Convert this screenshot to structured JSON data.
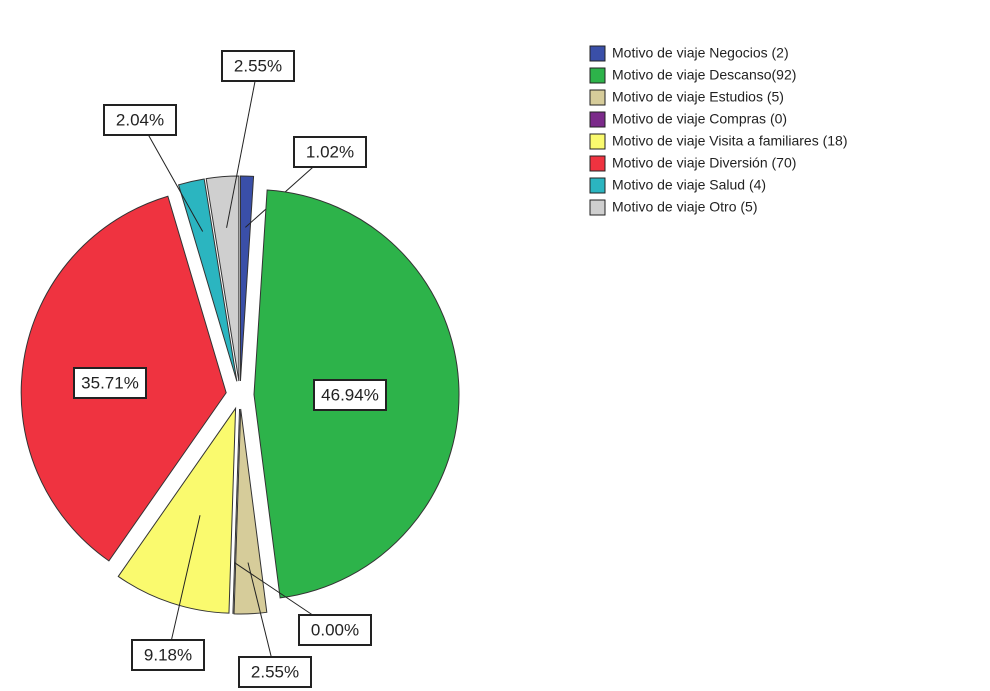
{
  "chart_data": {
    "type": "pie",
    "categories": [
      "Motivo de viaje Negocios (2)",
      "Motivo de viaje Descanso(92)",
      "Motivo de viaje Estudios (5)",
      "Motivo de viaje Compras (0)",
      "Motivo de viaje Visita a familiares (18)",
      "Motivo de viaje Diversión (70)",
      "Motivo de viaje Salud (4)",
      "Motivo de viaje Otro (5)"
    ],
    "values": [
      1.02,
      46.94,
      2.55,
      0.0,
      9.18,
      35.71,
      2.04,
      2.55
    ],
    "value_labels": [
      "1.02%",
      "46.94%",
      "2.55%",
      "0.00%",
      "9.18%",
      "35.71%",
      "2.04%",
      "2.55%"
    ],
    "colors": [
      "#3a4fa8",
      "#2db34a",
      "#d6cc9a",
      "#7b2a8a",
      "#fafa6e",
      "#ef3340",
      "#2bb5c0",
      "#cfcfcf"
    ]
  }
}
